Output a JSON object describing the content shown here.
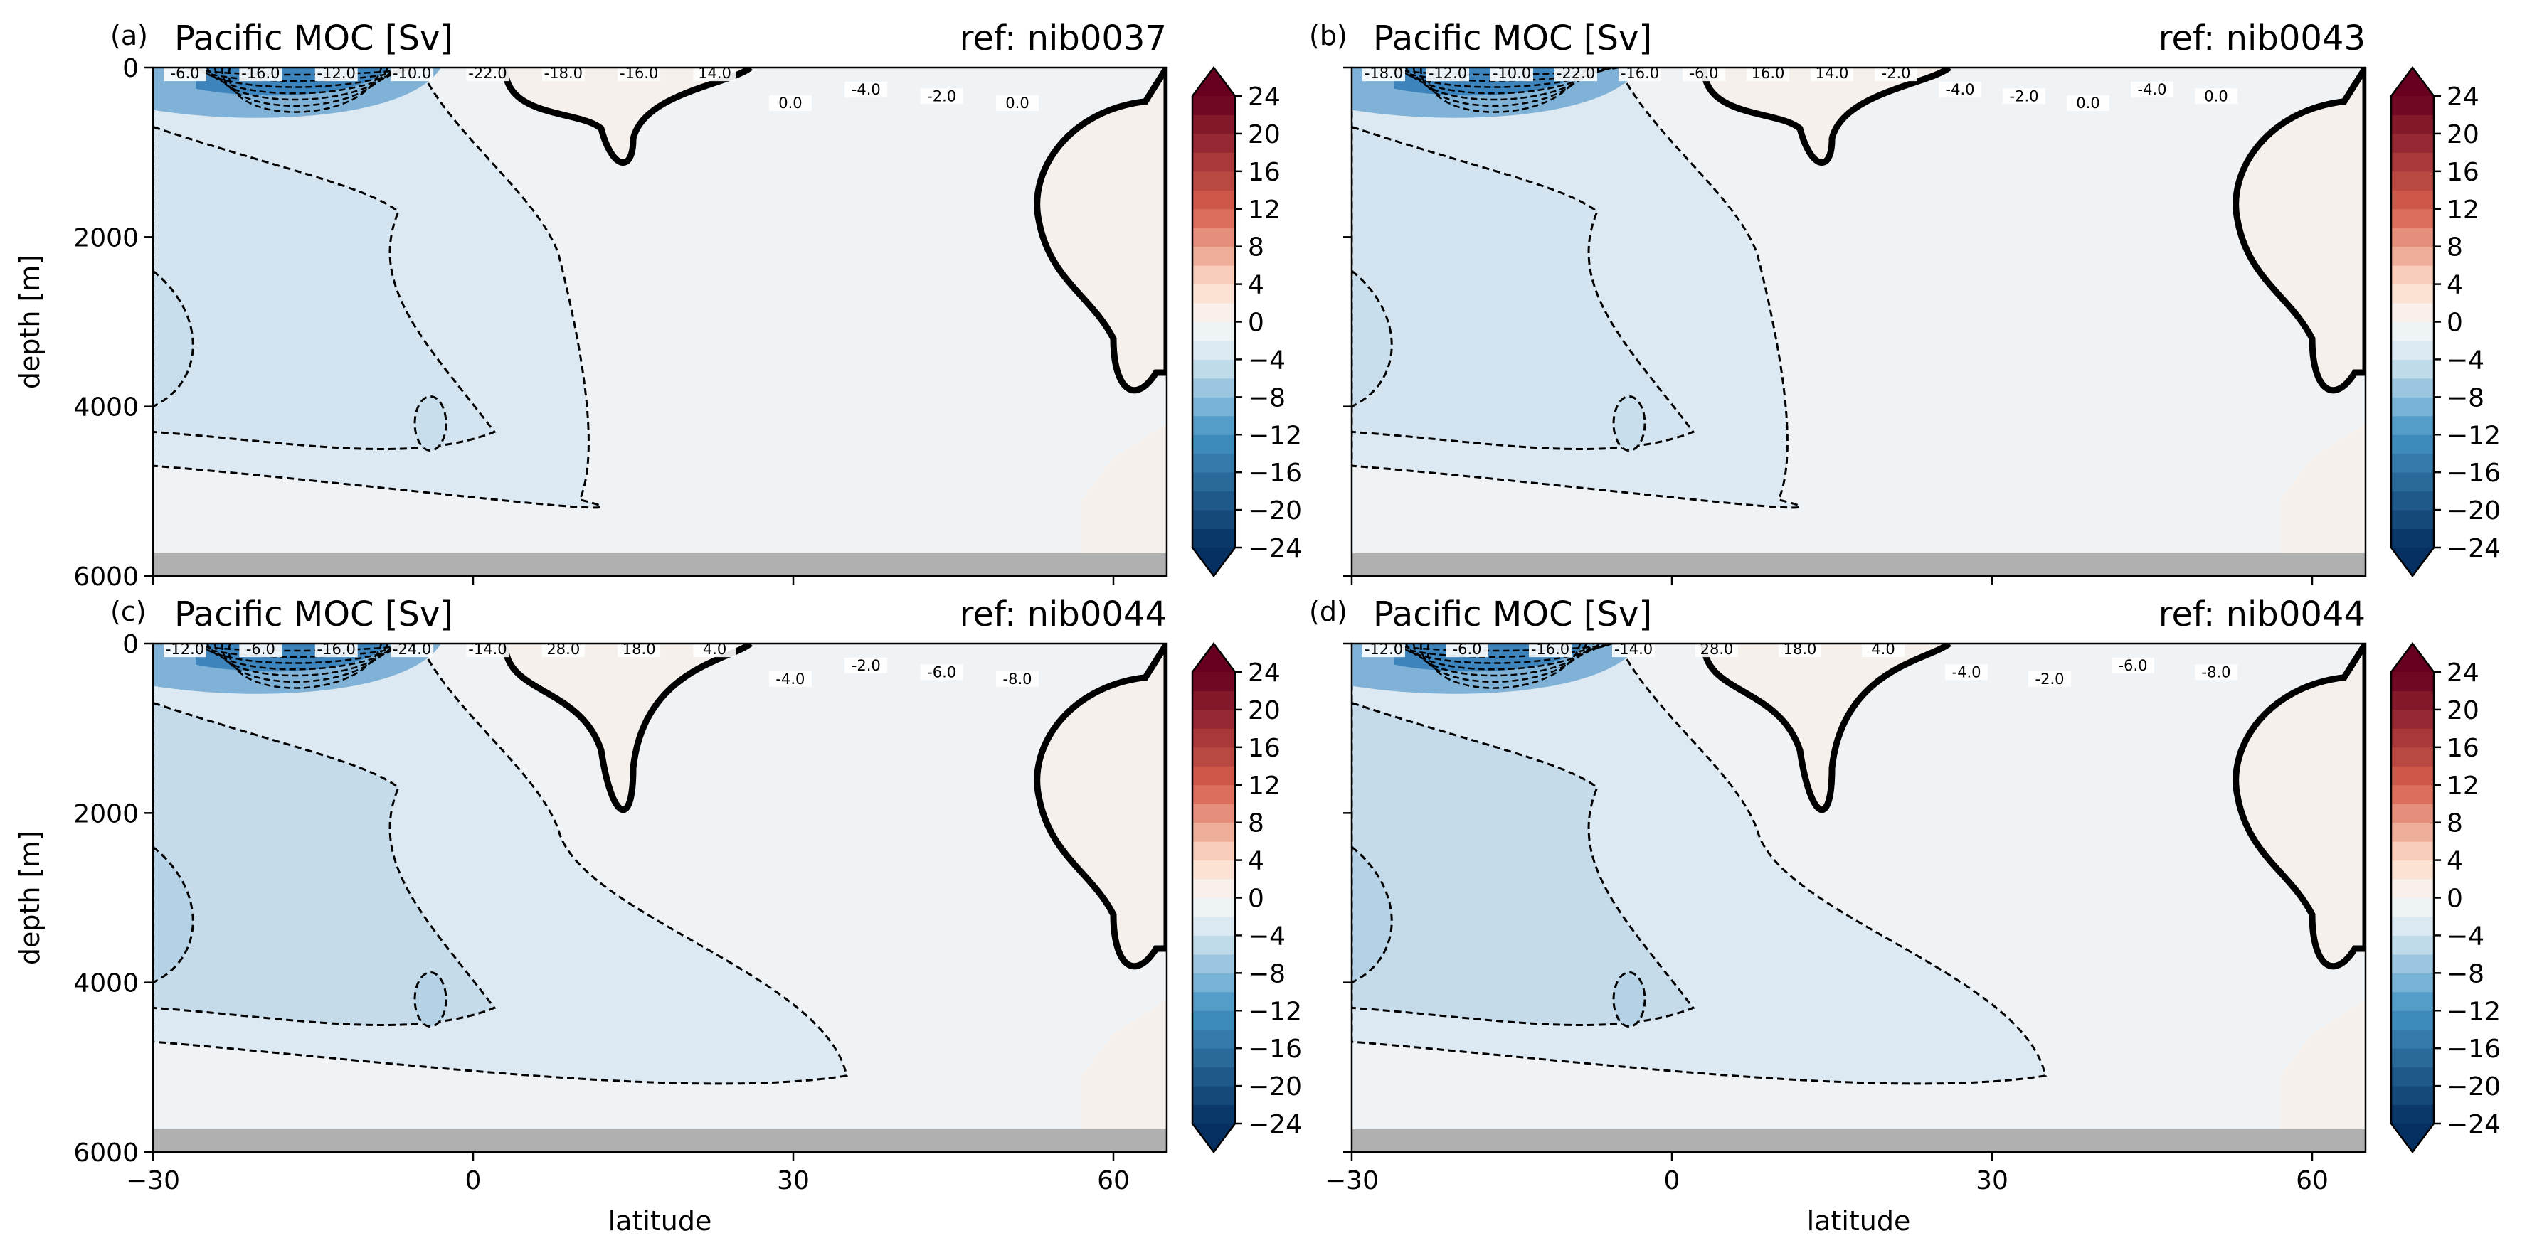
{
  "figure": {
    "xlabel": "latitude"
  },
  "colors": {
    "neg_strong": "#053061",
    "neg_mid": "#4393c3",
    "neg_light": "#d1e5f0",
    "zero": "#f7f7f7",
    "pos_light": "#fddbc7",
    "pos_mid": "#d6604d",
    "pos_strong": "#67001f",
    "land": "#f5f0eb",
    "bottom_mask": "#b0b0b0"
  },
  "chart_data": [
    {
      "type": "heatmap",
      "panel_letter": "(a)",
      "title": "Pacific MOC [Sv]",
      "ref_label": "ref: nib0037",
      "xlabel": "",
      "ylabel": "depth [m]",
      "xlim": [
        -30,
        65
      ],
      "ylim": [
        6000,
        0
      ],
      "xticks": [
        -30,
        0,
        30,
        60
      ],
      "yticks": [
        0,
        2000,
        4000,
        6000
      ],
      "contour_labels": [
        "-6.0",
        "-16.0",
        "-12.0",
        "-10.0",
        "-22.0",
        "-18.0",
        "-16.0",
        "14.0",
        "0.0",
        "-4.0",
        "-2.0",
        "0.0"
      ]
    },
    {
      "type": "heatmap",
      "panel_letter": "(b)",
      "title": "Pacific MOC [Sv]",
      "ref_label": "ref: nib0043",
      "xlabel": "",
      "ylabel": "",
      "xlim": [
        -30,
        65
      ],
      "ylim": [
        6000,
        0
      ],
      "xticks": [
        -30,
        0,
        30,
        60
      ],
      "yticks": [
        0,
        2000,
        4000,
        6000
      ],
      "contour_labels": [
        "-18.0",
        "-12.0",
        "-10.0",
        "-22.0",
        "-16.0",
        "-6.0",
        "16.0",
        "14.0",
        "-2.0",
        "-4.0",
        "-2.0",
        "0.0",
        "-4.0",
        "0.0"
      ]
    },
    {
      "type": "heatmap",
      "panel_letter": "(c)",
      "title": "Pacific MOC [Sv]",
      "ref_label": "ref: nib0044",
      "xlabel": "latitude",
      "ylabel": "depth [m]",
      "xlim": [
        -30,
        65
      ],
      "ylim": [
        6000,
        0
      ],
      "xticks": [
        -30,
        0,
        30,
        60
      ],
      "yticks": [
        0,
        2000,
        4000,
        6000
      ],
      "contour_labels": [
        "-12.0",
        "-6.0",
        "-16.0",
        "-24.0",
        "-14.0",
        "28.0",
        "18.0",
        "4.0",
        "-4.0",
        "-2.0",
        "-6.0",
        "-8.0"
      ]
    },
    {
      "type": "heatmap",
      "panel_letter": "(d)",
      "title": "Pacific MOC [Sv]",
      "ref_label": "ref: nib0044",
      "xlabel": "latitude",
      "ylabel": "",
      "xlim": [
        -30,
        65
      ],
      "ylim": [
        6000,
        0
      ],
      "xticks": [
        -30,
        0,
        30,
        60
      ],
      "yticks": [
        0,
        2000,
        4000,
        6000
      ],
      "contour_labels": [
        "-12.0",
        "-6.0",
        "-16.0",
        "-14.0",
        "28.0",
        "18.0",
        "4.0",
        "-4.0",
        "-2.0",
        "-6.0",
        "-8.0"
      ]
    }
  ],
  "colorbar": {
    "min": -24,
    "max": 24,
    "extend": "both",
    "ticks": [
      "24",
      "20",
      "16",
      "12",
      "8",
      "4",
      "0",
      "−4",
      "−8",
      "−12",
      "−16",
      "−20",
      "−24"
    ],
    "levels": [
      -24,
      -22,
      -20,
      -18,
      -16,
      -14,
      -12,
      -10,
      -8,
      -6,
      -4,
      -2,
      0,
      2,
      4,
      6,
      8,
      10,
      12,
      14,
      16,
      18,
      20,
      22,
      24
    ]
  }
}
